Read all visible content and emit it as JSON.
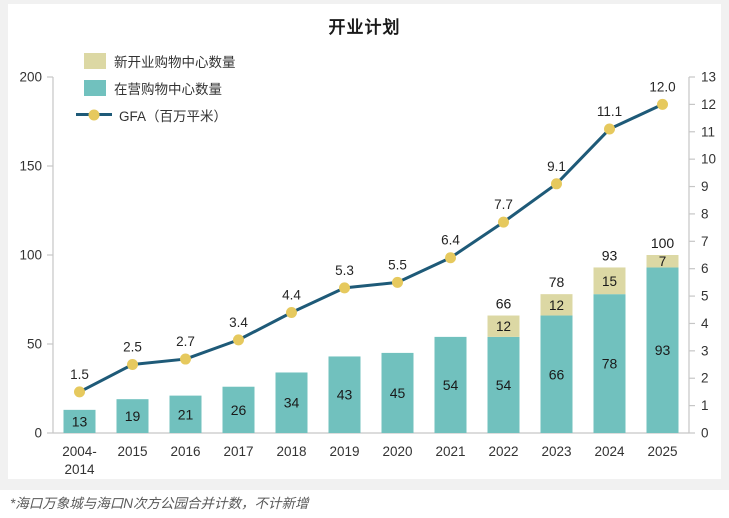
{
  "title": "开业计划",
  "legend": {
    "items": [
      {
        "label": "新开业购物中心数量",
        "color": "#dcd8a4"
      },
      {
        "label": "在营购物中心数量",
        "color": "#71c1be"
      },
      {
        "label": "GFA（百万平米）",
        "line_color": "#1e5a78",
        "marker_color": "#e6c95e"
      }
    ]
  },
  "footnote": "*海口万象城与海口N次方公园合并计数，不计新增",
  "colors": {
    "axis": "#c6c6c6",
    "tick_label": "#333333",
    "bar_label": "#1a1a1a",
    "gfa_label": "#262626"
  },
  "chart_data": {
    "type": "combo-stacked-bar-line",
    "title": "开业计划",
    "categories": [
      "2004-2014",
      "2015",
      "2016",
      "2017",
      "2018",
      "2019",
      "2020",
      "2021",
      "2022",
      "2023",
      "2024",
      "2025"
    ],
    "categories_display": [
      [
        "2004-",
        "2014"
      ],
      [
        "2015"
      ],
      [
        "2016"
      ],
      [
        "2017"
      ],
      [
        "2018"
      ],
      [
        "2019"
      ],
      [
        "2020"
      ],
      [
        "2021"
      ],
      [
        "2022"
      ],
      [
        "2023"
      ],
      [
        "2024"
      ],
      [
        "2025"
      ]
    ],
    "series": [
      {
        "name": "在营购物中心数量",
        "type": "bar",
        "stack": "malls",
        "axis": "left",
        "color": "#71c1be",
        "values": [
          13,
          19,
          21,
          26,
          34,
          43,
          45,
          54,
          54,
          66,
          78,
          93
        ]
      },
      {
        "name": "新开业购物中心数量",
        "type": "bar",
        "stack": "malls",
        "axis": "left",
        "color": "#dcd8a4",
        "values": [
          null,
          null,
          null,
          null,
          null,
          null,
          null,
          null,
          12,
          12,
          15,
          7
        ]
      },
      {
        "name": "GFA（百万平米）",
        "type": "line",
        "axis": "right",
        "color": "#1e5a78",
        "marker_color": "#e6c95e",
        "values": [
          1.5,
          2.5,
          2.7,
          3.4,
          4.4,
          5.3,
          5.5,
          6.4,
          7.7,
          9.1,
          11.1,
          12.0
        ],
        "labels": [
          "1.5",
          "2.5",
          "2.7",
          "3.4",
          "4.4",
          "5.3",
          "5.5",
          "6.4",
          "7.7",
          "9.1",
          "11.1",
          "12.0"
        ]
      }
    ],
    "stack_total_labels": [
      null,
      null,
      null,
      null,
      null,
      null,
      null,
      null,
      "66",
      "78",
      "93",
      "100"
    ],
    "left_axis": {
      "min": 0,
      "max": 200,
      "ticks": [
        "0",
        "50",
        "100",
        "150",
        "200"
      ]
    },
    "right_axis": {
      "min": 0,
      "max": 13,
      "ticks": [
        "0",
        "1",
        "2",
        "3",
        "4",
        "5",
        "6",
        "7",
        "8",
        "9",
        "10",
        "11",
        "12",
        "13"
      ]
    },
    "legend_position": "top-left",
    "grid": false
  }
}
